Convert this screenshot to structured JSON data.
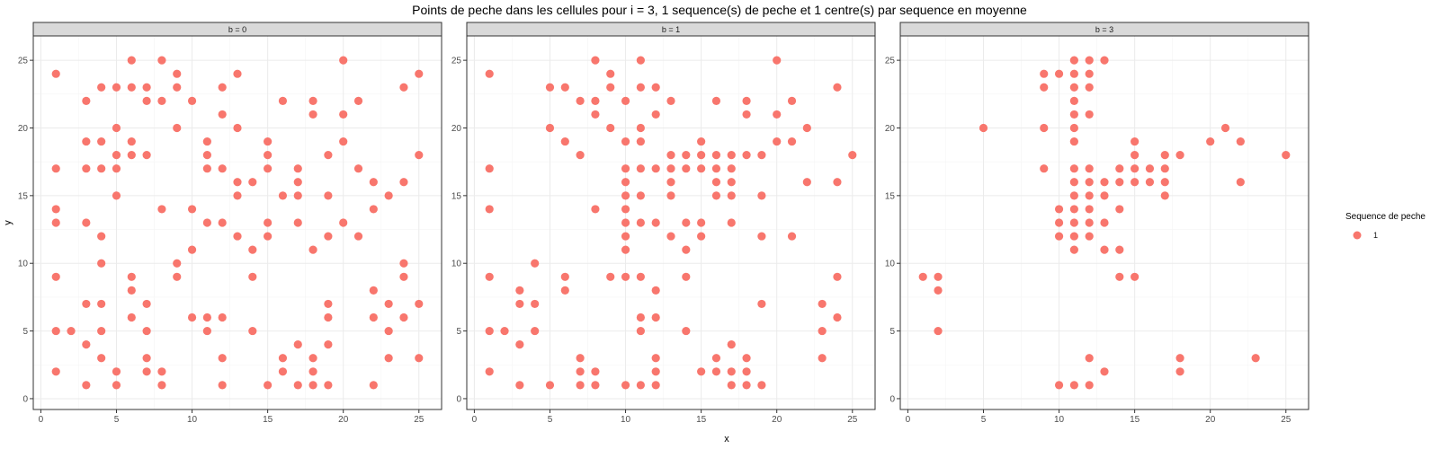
{
  "chart_data": {
    "type": "scatter",
    "title": "Points de peche dans les cellules pour i = 3, 1 sequence(s) de peche et 1 centre(s) par sequence en moyenne",
    "xlabel": "x",
    "ylabel": "y",
    "xlim": [
      -0.5,
      26.5
    ],
    "ylim": [
      -0.8,
      26.8
    ],
    "x_ticks": [
      0,
      5,
      10,
      15,
      20,
      25
    ],
    "y_ticks": [
      0,
      5,
      10,
      15,
      20,
      25
    ],
    "grid": true,
    "legend": {
      "title": "Sequence de peche",
      "entries": [
        "1"
      ],
      "position": "right"
    },
    "colors": {
      "point": "#F8766D",
      "strip_bg": "#d9d9d9",
      "grid_major": "#ebebeb",
      "grid_minor": "#f5f5f5",
      "border": "#333333"
    },
    "facets": [
      {
        "label": "b = 0",
        "points": [
          [
            1,
            24
          ],
          [
            1,
            17
          ],
          [
            1,
            14
          ],
          [
            1,
            13
          ],
          [
            1,
            9
          ],
          [
            1,
            5
          ],
          [
            1,
            2
          ],
          [
            2,
            5
          ],
          [
            3,
            22
          ],
          [
            3,
            19
          ],
          [
            3,
            17
          ],
          [
            3,
            13
          ],
          [
            3,
            7
          ],
          [
            3,
            4
          ],
          [
            3,
            1
          ],
          [
            4,
            23
          ],
          [
            4,
            19
          ],
          [
            4,
            17
          ],
          [
            4,
            12
          ],
          [
            4,
            10
          ],
          [
            4,
            7
          ],
          [
            4,
            5
          ],
          [
            4,
            3
          ],
          [
            5,
            23
          ],
          [
            5,
            20
          ],
          [
            5,
            18
          ],
          [
            5,
            17
          ],
          [
            5,
            15
          ],
          [
            5,
            2
          ],
          [
            5,
            1
          ],
          [
            6,
            25
          ],
          [
            6,
            23
          ],
          [
            6,
            19
          ],
          [
            6,
            18
          ],
          [
            6,
            9
          ],
          [
            6,
            8
          ],
          [
            6,
            6
          ],
          [
            7,
            23
          ],
          [
            7,
            22
          ],
          [
            7,
            18
          ],
          [
            7,
            7
          ],
          [
            7,
            5
          ],
          [
            7,
            3
          ],
          [
            7,
            2
          ],
          [
            8,
            25
          ],
          [
            8,
            22
          ],
          [
            8,
            14
          ],
          [
            8,
            2
          ],
          [
            8,
            1
          ],
          [
            9,
            24
          ],
          [
            9,
            23
          ],
          [
            9,
            20
          ],
          [
            9,
            10
          ],
          [
            9,
            9
          ],
          [
            10,
            22
          ],
          [
            10,
            14
          ],
          [
            10,
            11
          ],
          [
            10,
            6
          ],
          [
            11,
            19
          ],
          [
            11,
            18
          ],
          [
            11,
            17
          ],
          [
            11,
            13
          ],
          [
            11,
            6
          ],
          [
            11,
            5
          ],
          [
            12,
            23
          ],
          [
            12,
            21
          ],
          [
            12,
            17
          ],
          [
            12,
            13
          ],
          [
            12,
            6
          ],
          [
            12,
            3
          ],
          [
            12,
            1
          ],
          [
            13,
            24
          ],
          [
            13,
            20
          ],
          [
            13,
            16
          ],
          [
            13,
            15
          ],
          [
            13,
            12
          ],
          [
            14,
            16
          ],
          [
            14,
            11
          ],
          [
            14,
            9
          ],
          [
            14,
            5
          ],
          [
            15,
            19
          ],
          [
            15,
            18
          ],
          [
            15,
            17
          ],
          [
            15,
            13
          ],
          [
            15,
            12
          ],
          [
            15,
            1
          ],
          [
            16,
            22
          ],
          [
            16,
            15
          ],
          [
            16,
            3
          ],
          [
            16,
            2
          ],
          [
            17,
            17
          ],
          [
            17,
            16
          ],
          [
            17,
            15
          ],
          [
            17,
            13
          ],
          [
            17,
            4
          ],
          [
            17,
            1
          ],
          [
            18,
            22
          ],
          [
            18,
            21
          ],
          [
            18,
            11
          ],
          [
            18,
            3
          ],
          [
            18,
            2
          ],
          [
            18,
            1
          ],
          [
            19,
            18
          ],
          [
            19,
            15
          ],
          [
            19,
            12
          ],
          [
            19,
            7
          ],
          [
            19,
            6
          ],
          [
            19,
            4
          ],
          [
            19,
            1
          ],
          [
            20,
            25
          ],
          [
            20,
            21
          ],
          [
            20,
            19
          ],
          [
            20,
            13
          ],
          [
            21,
            22
          ],
          [
            21,
            17
          ],
          [
            21,
            12
          ],
          [
            22,
            16
          ],
          [
            22,
            14
          ],
          [
            22,
            8
          ],
          [
            22,
            6
          ],
          [
            22,
            1
          ],
          [
            23,
            15
          ],
          [
            23,
            7
          ],
          [
            23,
            5
          ],
          [
            23,
            3
          ],
          [
            24,
            23
          ],
          [
            24,
            16
          ],
          [
            24,
            10
          ],
          [
            24,
            9
          ],
          [
            24,
            6
          ],
          [
            25,
            24
          ],
          [
            25,
            18
          ],
          [
            25,
            7
          ],
          [
            25,
            3
          ]
        ]
      },
      {
        "label": "b = 1",
        "points": [
          [
            1,
            24
          ],
          [
            1,
            17
          ],
          [
            1,
            14
          ],
          [
            1,
            9
          ],
          [
            1,
            5
          ],
          [
            1,
            2
          ],
          [
            2,
            5
          ],
          [
            3,
            8
          ],
          [
            3,
            7
          ],
          [
            3,
            4
          ],
          [
            3,
            1
          ],
          [
            4,
            10
          ],
          [
            4,
            7
          ],
          [
            4,
            5
          ],
          [
            5,
            23
          ],
          [
            5,
            20
          ],
          [
            5,
            1
          ],
          [
            6,
            23
          ],
          [
            6,
            19
          ],
          [
            6,
            9
          ],
          [
            6,
            8
          ],
          [
            7,
            22
          ],
          [
            7,
            18
          ],
          [
            7,
            3
          ],
          [
            7,
            2
          ],
          [
            7,
            1
          ],
          [
            8,
            25
          ],
          [
            8,
            22
          ],
          [
            8,
            21
          ],
          [
            8,
            14
          ],
          [
            8,
            2
          ],
          [
            8,
            1
          ],
          [
            9,
            24
          ],
          [
            9,
            23
          ],
          [
            9,
            20
          ],
          [
            9,
            9
          ],
          [
            10,
            22
          ],
          [
            10,
            19
          ],
          [
            10,
            17
          ],
          [
            10,
            16
          ],
          [
            10,
            15
          ],
          [
            10,
            14
          ],
          [
            10,
            13
          ],
          [
            10,
            12
          ],
          [
            10,
            11
          ],
          [
            10,
            9
          ],
          [
            10,
            1
          ],
          [
            11,
            25
          ],
          [
            11,
            23
          ],
          [
            11,
            20
          ],
          [
            11,
            19
          ],
          [
            11,
            17
          ],
          [
            11,
            15
          ],
          [
            11,
            13
          ],
          [
            11,
            9
          ],
          [
            11,
            6
          ],
          [
            11,
            5
          ],
          [
            11,
            1
          ],
          [
            12,
            23
          ],
          [
            12,
            21
          ],
          [
            12,
            17
          ],
          [
            12,
            13
          ],
          [
            12,
            8
          ],
          [
            12,
            6
          ],
          [
            12,
            3
          ],
          [
            12,
            2
          ],
          [
            12,
            1
          ],
          [
            13,
            22
          ],
          [
            13,
            18
          ],
          [
            13,
            17
          ],
          [
            13,
            16
          ],
          [
            13,
            15
          ],
          [
            13,
            12
          ],
          [
            14,
            18
          ],
          [
            14,
            17
          ],
          [
            14,
            13
          ],
          [
            14,
            11
          ],
          [
            14,
            9
          ],
          [
            14,
            5
          ],
          [
            15,
            19
          ],
          [
            15,
            18
          ],
          [
            15,
            17
          ],
          [
            15,
            13
          ],
          [
            15,
            12
          ],
          [
            15,
            2
          ],
          [
            16,
            22
          ],
          [
            16,
            18
          ],
          [
            16,
            17
          ],
          [
            16,
            16
          ],
          [
            16,
            15
          ],
          [
            16,
            3
          ],
          [
            16,
            2
          ],
          [
            17,
            18
          ],
          [
            17,
            17
          ],
          [
            17,
            16
          ],
          [
            17,
            15
          ],
          [
            17,
            13
          ],
          [
            17,
            4
          ],
          [
            17,
            2
          ],
          [
            17,
            1
          ],
          [
            18,
            22
          ],
          [
            18,
            21
          ],
          [
            18,
            18
          ],
          [
            18,
            3
          ],
          [
            18,
            2
          ],
          [
            18,
            1
          ],
          [
            19,
            18
          ],
          [
            19,
            15
          ],
          [
            19,
            12
          ],
          [
            19,
            7
          ],
          [
            19,
            1
          ],
          [
            20,
            25
          ],
          [
            20,
            21
          ],
          [
            20,
            19
          ],
          [
            21,
            22
          ],
          [
            21,
            19
          ],
          [
            21,
            12
          ],
          [
            22,
            20
          ],
          [
            22,
            16
          ],
          [
            23,
            7
          ],
          [
            23,
            5
          ],
          [
            23,
            3
          ],
          [
            24,
            23
          ],
          [
            24,
            16
          ],
          [
            24,
            9
          ],
          [
            24,
            6
          ],
          [
            25,
            18
          ]
        ]
      },
      {
        "label": "b = 3",
        "points": [
          [
            1,
            9
          ],
          [
            2,
            9
          ],
          [
            2,
            8
          ],
          [
            2,
            5
          ],
          [
            5,
            20
          ],
          [
            9,
            24
          ],
          [
            9,
            23
          ],
          [
            9,
            20
          ],
          [
            9,
            17
          ],
          [
            10,
            24
          ],
          [
            10,
            14
          ],
          [
            10,
            13
          ],
          [
            10,
            12
          ],
          [
            10,
            1
          ],
          [
            11,
            25
          ],
          [
            11,
            24
          ],
          [
            11,
            23
          ],
          [
            11,
            22
          ],
          [
            11,
            21
          ],
          [
            11,
            20
          ],
          [
            11,
            19
          ],
          [
            11,
            17
          ],
          [
            11,
            16
          ],
          [
            11,
            15
          ],
          [
            11,
            14
          ],
          [
            11,
            13
          ],
          [
            11,
            12
          ],
          [
            11,
            11
          ],
          [
            11,
            1
          ],
          [
            12,
            25
          ],
          [
            12,
            24
          ],
          [
            12,
            23
          ],
          [
            12,
            21
          ],
          [
            12,
            17
          ],
          [
            12,
            16
          ],
          [
            12,
            15
          ],
          [
            12,
            14
          ],
          [
            12,
            13
          ],
          [
            12,
            12
          ],
          [
            12,
            3
          ],
          [
            12,
            1
          ],
          [
            13,
            25
          ],
          [
            13,
            16
          ],
          [
            13,
            15
          ],
          [
            13,
            13
          ],
          [
            13,
            11
          ],
          [
            13,
            2
          ],
          [
            14,
            17
          ],
          [
            14,
            16
          ],
          [
            14,
            14
          ],
          [
            14,
            11
          ],
          [
            14,
            9
          ],
          [
            15,
            19
          ],
          [
            15,
            18
          ],
          [
            15,
            17
          ],
          [
            15,
            16
          ],
          [
            15,
            9
          ],
          [
            16,
            17
          ],
          [
            16,
            16
          ],
          [
            17,
            18
          ],
          [
            17,
            17
          ],
          [
            17,
            16
          ],
          [
            17,
            15
          ],
          [
            18,
            18
          ],
          [
            18,
            3
          ],
          [
            18,
            2
          ],
          [
            20,
            19
          ],
          [
            21,
            20
          ],
          [
            22,
            19
          ],
          [
            22,
            16
          ],
          [
            23,
            3
          ],
          [
            25,
            18
          ]
        ]
      }
    ]
  }
}
